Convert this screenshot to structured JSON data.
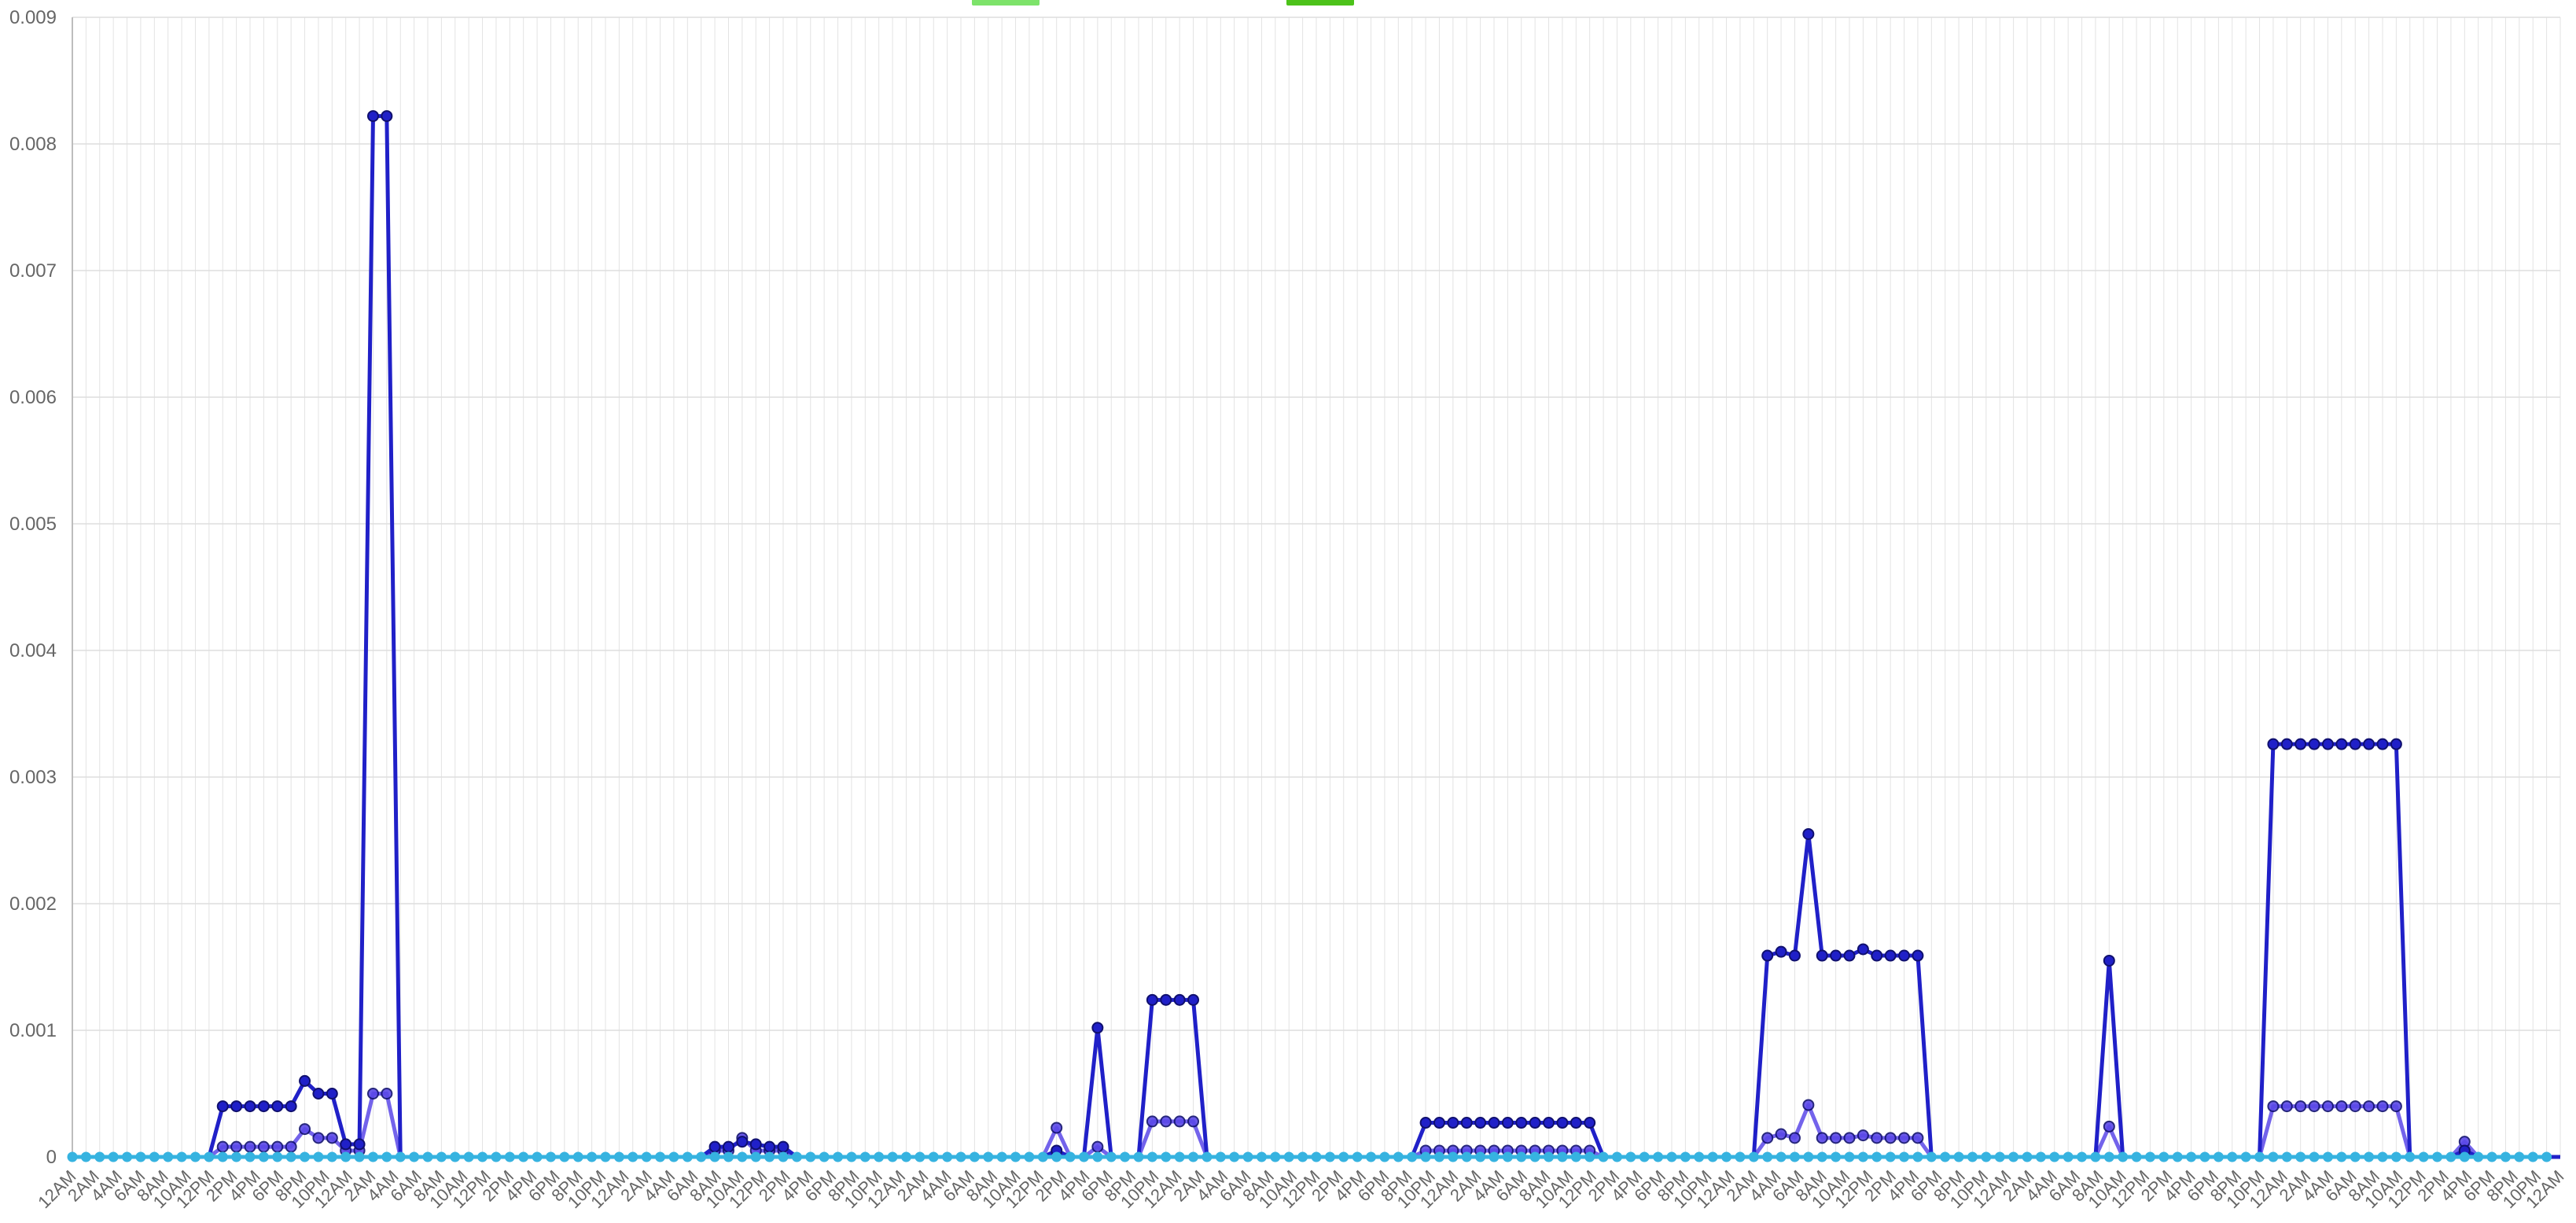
{
  "chart_data": {
    "type": "line",
    "title": "",
    "xlabel": "",
    "ylabel": "",
    "ylim": [
      0,
      0.009
    ],
    "yticks": [
      "0",
      "0.001",
      "0.002",
      "0.003",
      "0.004",
      "0.005",
      "0.006",
      "0.007",
      "0.008",
      "0.009"
    ],
    "x_tick_labels": [
      "12AM",
      "2AM",
      "4AM",
      "6AM",
      "8AM",
      "10AM",
      "12PM",
      "2PM",
      "4PM",
      "6PM",
      "8PM",
      "10PM",
      "12AM",
      "2AM",
      "4AM",
      "6AM",
      "8AM",
      "10AM",
      "12PM",
      "2PM",
      "4PM",
      "6PM",
      "8PM",
      "10PM",
      "12AM",
      "2AM",
      "4AM",
      "6AM",
      "8AM",
      "10AM",
      "12PM",
      "2PM",
      "4PM",
      "6PM",
      "8PM",
      "10PM",
      "12AM",
      "2AM",
      "4AM",
      "6AM",
      "8AM",
      "10AM",
      "12PM",
      "2PM",
      "4PM",
      "6PM",
      "8PM",
      "10PM",
      "12AM",
      "2AM",
      "4AM",
      "6AM",
      "8AM",
      "10AM",
      "12PM",
      "2PM",
      "4PM",
      "6PM",
      "8PM",
      "10PM",
      "12AM",
      "2AM",
      "4AM",
      "6AM",
      "8AM",
      "10AM",
      "12PM",
      "2PM",
      "4PM",
      "6PM",
      "8PM",
      "10PM",
      "12AM",
      "2AM",
      "4AM",
      "6AM",
      "8AM",
      "10AM",
      "12PM",
      "2PM",
      "4PM",
      "6PM",
      "8PM",
      "10PM",
      "12AM",
      "2AM",
      "4AM",
      "6AM",
      "8AM",
      "10AM",
      "12PM",
      "2PM",
      "4PM",
      "6PM",
      "8PM",
      "10PM",
      "12AM",
      "2AM",
      "4AM",
      "6AM",
      "8AM",
      "10AM",
      "12PM",
      "2PM",
      "4PM",
      "6PM",
      "8PM",
      "10PM",
      "12AM"
    ],
    "grid": true,
    "legend_position": "top-center",
    "legend_colors": [
      "#7de36a",
      "#4cc21a"
    ],
    "series": [
      {
        "color": "#2020c8",
        "values": [
          0,
          0,
          0,
          0,
          0,
          0,
          0,
          0,
          0,
          0,
          0,
          0.0004,
          0.0004,
          0.0004,
          0.0004,
          0.0004,
          0.0004,
          0.0006,
          0.0005,
          0.0005,
          0.0001,
          0.0001,
          0.00822,
          0.00822,
          0,
          0,
          0,
          0,
          0,
          0,
          0,
          0,
          0,
          0,
          0,
          0,
          0,
          0,
          0,
          0,
          0,
          0,
          0,
          0,
          0,
          0,
          0,
          8e-05,
          8e-05,
          0.00012,
          0.0001,
          8e-05,
          8e-05,
          0,
          0,
          0,
          0,
          0,
          0,
          0,
          0,
          0,
          0,
          0,
          0,
          0,
          0,
          0,
          0,
          0,
          0,
          0,
          5e-05,
          0,
          0,
          0.00102,
          0,
          0,
          0,
          0.00124,
          0.00124,
          0.00124,
          0.00124,
          0,
          0,
          0,
          0,
          0,
          0,
          0,
          0,
          0,
          0,
          0,
          0,
          0,
          0,
          0,
          0,
          0.00027,
          0.00027,
          0.00027,
          0.00027,
          0.00027,
          0.00027,
          0.00027,
          0.00027,
          0.00027,
          0.00027,
          0.00027,
          0.00027,
          0.00027,
          0,
          0,
          0,
          0,
          0,
          0,
          0,
          0,
          0,
          0,
          0,
          0,
          0.00159,
          0.00162,
          0.00159,
          0.00255,
          0.00159,
          0.00159,
          0.00159,
          0.00164,
          0.00159,
          0.00159,
          0.00159,
          0.00159,
          0,
          0,
          0,
          0,
          0,
          0,
          0,
          0,
          0,
          0,
          0,
          0,
          0,
          0.00155,
          0,
          0,
          0,
          0,
          0,
          0,
          0,
          0,
          0,
          0,
          0,
          0.00326,
          0.00326,
          0.00326,
          0.00326,
          0.00326,
          0.00326,
          0.00326,
          0.00326,
          0.00326,
          0.00326,
          0,
          0,
          0,
          0,
          5e-05,
          0,
          0,
          0,
          0,
          0,
          0,
          0
        ]
      },
      {
        "color": "#5a48e8",
        "values": [
          0,
          0,
          0,
          0,
          0,
          0,
          0,
          0,
          0,
          0,
          0,
          8e-05,
          8e-05,
          8e-05,
          8e-05,
          8e-05,
          8e-05,
          0.00022,
          0.00015,
          0.00015,
          5e-05,
          5e-05,
          0.0005,
          0.0005,
          0,
          0,
          0,
          0,
          0,
          0,
          0,
          0,
          0,
          0,
          0,
          0,
          0,
          0,
          0,
          0,
          0,
          0,
          0,
          0,
          0,
          0,
          0,
          5e-05,
          5e-05,
          0.00015,
          5e-05,
          5e-05,
          5e-05,
          0,
          0,
          0,
          0,
          0,
          0,
          0,
          0,
          0,
          0,
          0,
          0,
          0,
          0,
          0,
          0,
          0,
          0,
          0,
          0.00023,
          0,
          0,
          8e-05,
          0,
          0,
          0,
          0.00028,
          0.00028,
          0.00028,
          0.00028,
          0,
          0,
          0,
          0,
          0,
          0,
          0,
          0,
          0,
          0,
          0,
          0,
          0,
          0,
          0,
          0,
          5e-05,
          5e-05,
          5e-05,
          5e-05,
          5e-05,
          5e-05,
          5e-05,
          5e-05,
          5e-05,
          5e-05,
          5e-05,
          5e-05,
          5e-05,
          0,
          0,
          0,
          0,
          0,
          0,
          0,
          0,
          0,
          0,
          0,
          0,
          0.00015,
          0.00018,
          0.00015,
          0.00041,
          0.00015,
          0.00015,
          0.00015,
          0.00017,
          0.00015,
          0.00015,
          0.00015,
          0.00015,
          0,
          0,
          0,
          0,
          0,
          0,
          0,
          0,
          0,
          0,
          0,
          0,
          0,
          0.00024,
          0,
          0,
          0,
          0,
          0,
          0,
          0,
          0,
          0,
          0,
          0,
          0.0004,
          0.0004,
          0.0004,
          0.0004,
          0.0004,
          0.0004,
          0.0004,
          0.0004,
          0.0004,
          0.0004,
          0,
          0,
          0,
          0,
          0.00012,
          0,
          0,
          0,
          0,
          0,
          0,
          0
        ]
      },
      {
        "color": "#36b3e0",
        "values": [
          0,
          0,
          0,
          0,
          0,
          0,
          0,
          0,
          0,
          0,
          0,
          0,
          0,
          0,
          0,
          0,
          0,
          0,
          0,
          0,
          0,
          0,
          0,
          0,
          0,
          0,
          0,
          0,
          0,
          0,
          0,
          0,
          0,
          0,
          0,
          0,
          0,
          0,
          0,
          0,
          0,
          0,
          0,
          0,
          0,
          0,
          0,
          0,
          0,
          0,
          0,
          0,
          0,
          0,
          0,
          0,
          0,
          0,
          0,
          0,
          0,
          0,
          0,
          0,
          0,
          0,
          0,
          0,
          0,
          0,
          0,
          0,
          0,
          0,
          0,
          0,
          0,
          0,
          0,
          0,
          0,
          0,
          0,
          0,
          0,
          0,
          0,
          0,
          0,
          0,
          0,
          0,
          0,
          0,
          0,
          0,
          0,
          0,
          0,
          0,
          0,
          0,
          0,
          0,
          0,
          0,
          0,
          0,
          0,
          0,
          0,
          0,
          0,
          0,
          0,
          0,
          0,
          0,
          0,
          0,
          0,
          0,
          0,
          0,
          0,
          0,
          0,
          0,
          0,
          0,
          0,
          0,
          0,
          0,
          0,
          0,
          0,
          0,
          0,
          0,
          0,
          0,
          0,
          0,
          0,
          0,
          0,
          0,
          0,
          0,
          0,
          0,
          0,
          0,
          0,
          0,
          0,
          0,
          0,
          0,
          0,
          0,
          0,
          0,
          0,
          0,
          0,
          0,
          0,
          0,
          0,
          0,
          0,
          0,
          0,
          0,
          0,
          0,
          0,
          0,
          0,
          0
        ]
      }
    ]
  }
}
